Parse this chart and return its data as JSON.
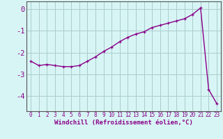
{
  "x": [
    0,
    1,
    2,
    3,
    4,
    5,
    6,
    7,
    8,
    9,
    10,
    11,
    12,
    13,
    14,
    15,
    16,
    17,
    18,
    19,
    20,
    21,
    22,
    23
  ],
  "y": [
    -2.4,
    -2.6,
    -2.55,
    -2.6,
    -2.65,
    -2.65,
    -2.6,
    -2.4,
    -2.2,
    -1.95,
    -1.75,
    -1.5,
    -1.3,
    -1.15,
    -1.05,
    -0.85,
    -0.75,
    -0.65,
    -0.55,
    -0.45,
    -0.25,
    0.05,
    -3.7,
    -4.35
  ],
  "line_color": "#880088",
  "marker": "+",
  "markersize": 3.5,
  "linewidth": 1.0,
  "xlabel": "Windchill (Refroidissement éolien,°C)",
  "xlabel_fontsize": 6.5,
  "bg_color": "#d8f5f5",
  "grid_color": "#aacccc",
  "label_color": "#880088",
  "ylim": [
    -4.7,
    0.35
  ],
  "xlim": [
    -0.5,
    23.5
  ],
  "yticks": [
    0,
    -1,
    -2,
    -3,
    -4
  ],
  "ytick_labels": [
    "0",
    "-1",
    "-2",
    "-3",
    "-4"
  ],
  "xticks": [
    0,
    1,
    2,
    3,
    4,
    5,
    6,
    7,
    8,
    9,
    10,
    11,
    12,
    13,
    14,
    15,
    16,
    17,
    18,
    19,
    20,
    21,
    22,
    23
  ],
  "tick_fontsize": 5.5,
  "ylabel_fontsize": 7.5
}
